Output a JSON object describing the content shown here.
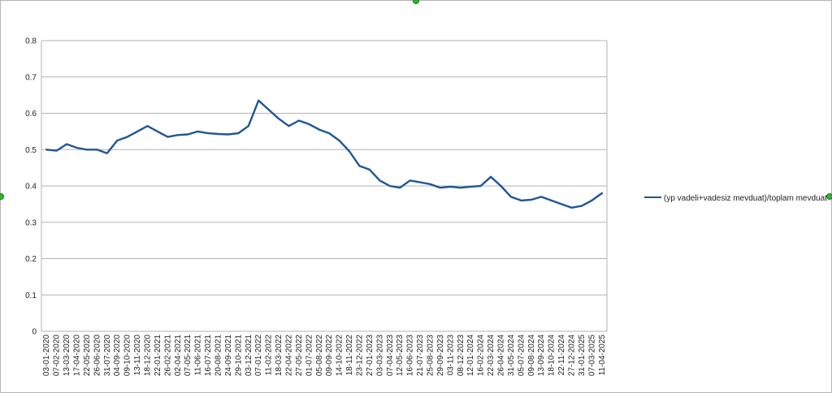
{
  "chart_data": {
    "type": "line",
    "title": "",
    "xlabel": "",
    "ylabel": "",
    "ylim": [
      0,
      0.8
    ],
    "yticks": [
      0,
      0.1,
      0.2,
      0.3,
      0.4,
      0.5,
      0.6,
      0.7,
      0.8
    ],
    "ytick_labels": [
      "0",
      "0.1",
      "0.2",
      "0.3",
      "0.4",
      "0.5",
      "0.6",
      "0.7",
      "0.8"
    ],
    "grid": "horizontal",
    "legend_position": "right",
    "line_color": "#1f5696",
    "x_tick_labels": [
      "03-01-2020",
      "07-02-2020",
      "13-03-2020",
      "17-04-2020",
      "22-05-2020",
      "26-06-2020",
      "31-07-2020",
      "04-09-2020",
      "09-10-2020",
      "13-11-2020",
      "18-12-2020",
      "22-01-2021",
      "26-02-2021",
      "02-04-2021",
      "07-05-2021",
      "11-06-2021",
      "16-07-2021",
      "20-08-2021",
      "24-09-2021",
      "29-10-2021",
      "03-12-2021",
      "07-01-2022",
      "11-02-2022",
      "18-03-2022",
      "22-04-2022",
      "27-05-2022",
      "01-07-2022",
      "05-08-2022",
      "09-09-2022",
      "14-10-2022",
      "18-11-2022",
      "23-12-2022",
      "27-01-2023",
      "03-03-2023",
      "07-04-2023",
      "12-05-2023",
      "16-06-2023",
      "21-07-2023",
      "25-08-2023",
      "29-09-2023",
      "03-11-2023",
      "08-12-2023",
      "12-01-2024",
      "16-02-2024",
      "22-03-2024",
      "26-04-2024",
      "31-05-2024",
      "05-07-2024",
      "09-08-2024",
      "13-09-2024",
      "18-10-2024",
      "22-11-2024",
      "27-12-2024",
      "31-01-2025",
      "07-03-2025",
      "11-04-2025"
    ],
    "series": [
      {
        "name": "(yp vadeli+vadesiz mevduat)/toplam mevduat",
        "x": [
          "03-01-2020",
          "07-02-2020",
          "13-03-2020",
          "17-04-2020",
          "22-05-2020",
          "26-06-2020",
          "31-07-2020",
          "04-09-2020",
          "09-10-2020",
          "13-11-2020",
          "18-12-2020",
          "22-01-2021",
          "26-02-2021",
          "02-04-2021",
          "07-05-2021",
          "11-06-2021",
          "16-07-2021",
          "20-08-2021",
          "24-09-2021",
          "29-10-2021",
          "03-12-2021",
          "07-01-2022",
          "11-02-2022",
          "18-03-2022",
          "22-04-2022",
          "27-05-2022",
          "01-07-2022",
          "05-08-2022",
          "09-09-2022",
          "14-10-2022",
          "18-11-2022",
          "23-12-2022",
          "27-01-2023",
          "03-03-2023",
          "07-04-2023",
          "12-05-2023",
          "16-06-2023",
          "21-07-2023",
          "25-08-2023",
          "29-09-2023",
          "03-11-2023",
          "08-12-2023",
          "12-01-2024",
          "16-02-2024",
          "22-03-2024",
          "26-04-2024",
          "31-05-2024",
          "05-07-2024",
          "09-08-2024",
          "13-09-2024",
          "18-10-2024",
          "22-11-2024",
          "27-12-2024",
          "31-01-2025",
          "07-03-2025",
          "11-04-2025"
        ],
        "values": [
          0.5,
          0.497,
          0.515,
          0.505,
          0.5,
          0.5,
          0.49,
          0.525,
          0.535,
          0.55,
          0.565,
          0.55,
          0.535,
          0.54,
          0.542,
          0.55,
          0.545,
          0.543,
          0.542,
          0.545,
          0.565,
          0.635,
          0.61,
          0.585,
          0.565,
          0.58,
          0.57,
          0.555,
          0.545,
          0.525,
          0.495,
          0.455,
          0.445,
          0.415,
          0.4,
          0.395,
          0.415,
          0.41,
          0.405,
          0.395,
          0.398,
          0.395,
          0.398,
          0.4,
          0.425,
          0.4,
          0.37,
          0.36,
          0.362,
          0.37,
          0.36,
          0.35,
          0.34,
          0.345,
          0.36,
          0.38
        ]
      }
    ]
  }
}
